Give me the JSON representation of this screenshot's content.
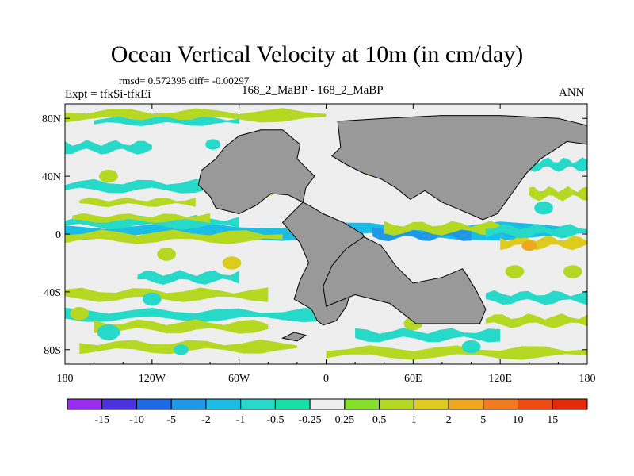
{
  "chart_data": {
    "type": "heatmap",
    "title": "Ocean Vertical Velocity at 10m (in cm/day)",
    "stats_text": "rmsd= 0.572395 diff= -0.00297",
    "left_label": "Expt = tfkSi-tfkEi",
    "center_label": "168_2_MaBP - 168_2_MaBP",
    "right_label": "ANN",
    "x_range": [
      -180,
      180
    ],
    "y_range": [
      -90,
      90
    ],
    "x_ticks": [
      {
        "value": -180,
        "label": "180"
      },
      {
        "value": -120,
        "label": "120W"
      },
      {
        "value": -60,
        "label": "60W"
      },
      {
        "value": 0,
        "label": "0"
      },
      {
        "value": 60,
        "label": "60E"
      },
      {
        "value": 120,
        "label": "120E"
      },
      {
        "value": 180,
        "label": "180"
      }
    ],
    "y_ticks": [
      {
        "value": 80,
        "label": "80N"
      },
      {
        "value": 40,
        "label": "40N"
      },
      {
        "value": 0,
        "label": "0"
      },
      {
        "value": -40,
        "label": "40S"
      },
      {
        "value": -80,
        "label": "80S"
      }
    ],
    "colorbar": {
      "labels": [
        "-15",
        "-10",
        "-5",
        "-2",
        "-1",
        "-0.5",
        "-0.25",
        "0.25",
        "0.5",
        "1",
        "2",
        "5",
        "10",
        "15"
      ],
      "colors": [
        "#9a2cf0",
        "#4b32e0",
        "#1e6ae6",
        "#1f98e8",
        "#19bde6",
        "#27d9c8",
        "#16e0a5",
        "#eeeeee",
        "#86e02a",
        "#b5d822",
        "#ddcc1e",
        "#eea81e",
        "#f07a1e",
        "#f04a14",
        "#e42a0a"
      ]
    },
    "land_color": "#999999",
    "land": [
      {
        "name": "americas",
        "points": [
          [
            -60,
            68
          ],
          [
            -45,
            72
          ],
          [
            -30,
            72
          ],
          [
            -18,
            62
          ],
          [
            -20,
            52
          ],
          [
            -8,
            40
          ],
          [
            -14,
            32
          ],
          [
            -16,
            22
          ],
          [
            -30,
            8
          ],
          [
            -18,
            -6
          ],
          [
            -12,
            -20
          ],
          [
            -18,
            -32
          ],
          [
            -22,
            -45
          ],
          [
            -10,
            -52
          ],
          [
            -6,
            -60
          ],
          [
            -2,
            -63
          ],
          [
            7,
            -60
          ],
          [
            14,
            -50
          ],
          [
            18,
            -36
          ],
          [
            28,
            -22
          ],
          [
            32,
            -10
          ],
          [
            25,
            0
          ],
          [
            12,
            8
          ],
          [
            -2,
            14
          ],
          [
            -12,
            20
          ],
          [
            -26,
            27
          ],
          [
            -38,
            28
          ],
          [
            -48,
            20
          ],
          [
            -60,
            14
          ],
          [
            -76,
            18
          ],
          [
            -80,
            26
          ],
          [
            -88,
            34
          ],
          [
            -86,
            44
          ],
          [
            -76,
            52
          ],
          [
            -70,
            60
          ]
        ]
      },
      {
        "name": "eurasia",
        "points": [
          [
            8,
            78
          ],
          [
            40,
            80
          ],
          [
            80,
            82
          ],
          [
            120,
            82
          ],
          [
            160,
            80
          ],
          [
            180,
            75
          ],
          [
            180,
            62
          ],
          [
            166,
            64
          ],
          [
            148,
            52
          ],
          [
            138,
            42
          ],
          [
            128,
            28
          ],
          [
            118,
            14
          ],
          [
            108,
            10
          ],
          [
            94,
            16
          ],
          [
            80,
            22
          ],
          [
            68,
            30
          ],
          [
            58,
            24
          ],
          [
            48,
            32
          ],
          [
            38,
            38
          ],
          [
            26,
            42
          ],
          [
            14,
            48
          ],
          [
            4,
            54
          ],
          [
            10,
            60
          ]
        ]
      },
      {
        "name": "africa_australia",
        "points": [
          [
            0,
            -50
          ],
          [
            20,
            -42
          ],
          [
            44,
            -48
          ],
          [
            62,
            -62
          ],
          [
            90,
            -62
          ],
          [
            106,
            -62
          ],
          [
            110,
            -52
          ],
          [
            104,
            -40
          ],
          [
            98,
            -30
          ],
          [
            94,
            -24
          ],
          [
            80,
            -30
          ],
          [
            60,
            -34
          ],
          [
            48,
            -22
          ],
          [
            38,
            -8
          ],
          [
            26,
            -2
          ],
          [
            14,
            -10
          ],
          [
            4,
            -22
          ],
          [
            -2,
            -36
          ]
        ]
      },
      {
        "name": "antarctic_islands",
        "points": [
          [
            -30,
            -72
          ],
          [
            -20,
            -74
          ],
          [
            -14,
            -70
          ],
          [
            -22,
            -68
          ]
        ]
      }
    ],
    "field_bands": [
      {
        "lat": 2,
        "lon_range": [
          -180,
          180
        ],
        "half_width": 4,
        "level": "-1"
      },
      {
        "lat": -2,
        "lon_range": [
          -180,
          -30
        ],
        "half_width": 3,
        "level": "0.5"
      },
      {
        "lat": 8,
        "lon_range": [
          -180,
          -60
        ],
        "half_width": 3,
        "level": "-0.5"
      },
      {
        "lat": 11,
        "lon_range": [
          -175,
          -80
        ],
        "half_width": 2,
        "level": "0.5"
      },
      {
        "lat": 0,
        "lon_range": [
          32,
          100
        ],
        "half_width": 3,
        "level": "-2"
      },
      {
        "lat": 4,
        "lon_range": [
          40,
          120
        ],
        "half_width": 3,
        "level": "0.5"
      },
      {
        "lat": -6,
        "lon_range": [
          120,
          180
        ],
        "half_width": 3,
        "level": "1"
      },
      {
        "lat": 2,
        "lon_range": [
          110,
          180
        ],
        "half_width": 3,
        "level": "-0.5"
      },
      {
        "lat": 33,
        "lon_range": [
          -180,
          -60
        ],
        "half_width": 3,
        "level": "-0.5"
      },
      {
        "lat": 22,
        "lon_range": [
          -170,
          -90
        ],
        "half_width": 2,
        "level": "0.5"
      },
      {
        "lat": 28,
        "lon_range": [
          140,
          180
        ],
        "half_width": 3,
        "level": "0.5"
      },
      {
        "lat": 48,
        "lon_range": [
          140,
          180
        ],
        "half_width": 3,
        "level": "-0.5"
      },
      {
        "lat": 60,
        "lon_range": [
          -180,
          -120
        ],
        "half_width": 3,
        "level": "-0.5"
      },
      {
        "lat": 82,
        "lon_range": [
          -180,
          0
        ],
        "half_width": 3,
        "level": "0.5"
      },
      {
        "lat": 78,
        "lon_range": [
          -160,
          -60
        ],
        "half_width": 2,
        "level": "-0.5"
      },
      {
        "lat": -30,
        "lon_range": [
          -130,
          -60
        ],
        "half_width": 3,
        "level": "-0.5"
      },
      {
        "lat": -42,
        "lon_range": [
          -180,
          -40
        ],
        "half_width": 3,
        "level": "0.5"
      },
      {
        "lat": -56,
        "lon_range": [
          -180,
          0
        ],
        "half_width": 3,
        "level": "-0.5"
      },
      {
        "lat": -64,
        "lon_range": [
          -160,
          -40
        ],
        "half_width": 3,
        "level": "0.5"
      },
      {
        "lat": -78,
        "lon_range": [
          -170,
          -20
        ],
        "half_width": 3,
        "level": "0.5"
      },
      {
        "lat": -82,
        "lon_range": [
          0,
          180
        ],
        "half_width": 3,
        "level": "0.5"
      },
      {
        "lat": -60,
        "lon_range": [
          110,
          180
        ],
        "half_width": 3,
        "level": "0.5"
      },
      {
        "lat": -44,
        "lon_range": [
          110,
          180
        ],
        "half_width": 3,
        "level": "-0.5"
      },
      {
        "lat": -70,
        "lon_range": [
          20,
          120
        ],
        "half_width": 3,
        "level": "-0.5"
      }
    ],
    "field_blobs": [
      {
        "lon": -20,
        "lat": 6,
        "r": 6,
        "level": "1"
      },
      {
        "lon": -110,
        "lat": -14,
        "r": 5,
        "level": "0.5"
      },
      {
        "lon": -65,
        "lat": -20,
        "r": 5,
        "level": "1"
      },
      {
        "lon": -40,
        "lat": 30,
        "r": 4,
        "level": "1"
      },
      {
        "lon": -78,
        "lat": 62,
        "r": 4,
        "level": "-0.5"
      },
      {
        "lon": 150,
        "lat": 18,
        "r": 5,
        "level": "-0.5"
      },
      {
        "lon": 170,
        "lat": -26,
        "r": 5,
        "level": "0.5"
      },
      {
        "lon": -150,
        "lat": -68,
        "r": 6,
        "level": "-0.5"
      },
      {
        "lon": 60,
        "lat": 48,
        "r": 4,
        "level": "0.5"
      },
      {
        "lon": 30,
        "lat": 44,
        "r": 4,
        "level": "0.5"
      },
      {
        "lon": 130,
        "lat": -26,
        "r": 5,
        "level": "0.5"
      },
      {
        "lon": 60,
        "lat": -62,
        "r": 5,
        "level": "0.5"
      },
      {
        "lon": 70,
        "lat": -40,
        "r": 4,
        "level": "-0.5"
      },
      {
        "lon": 140,
        "lat": -8,
        "r": 4,
        "level": "2"
      },
      {
        "lon": -150,
        "lat": 40,
        "r": 5,
        "level": "0.5"
      },
      {
        "lon": -120,
        "lat": -45,
        "r": 5,
        "level": "-0.5"
      },
      {
        "lon": 100,
        "lat": -78,
        "r": 5,
        "level": "-0.5"
      },
      {
        "lon": -100,
        "lat": -80,
        "r": 4,
        "level": "-0.5"
      },
      {
        "lon": -170,
        "lat": -55,
        "r": 5,
        "level": "0.5"
      }
    ]
  }
}
